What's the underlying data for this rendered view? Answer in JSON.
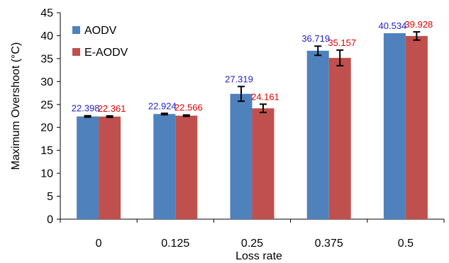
{
  "chart_data": {
    "type": "bar",
    "title": "",
    "xlabel": "Loss rate",
    "ylabel": "Maximum Overshoot (°C)",
    "categories": [
      "0",
      "0.125",
      "0.25",
      "0.375",
      "0.5"
    ],
    "ylim": [
      0,
      45
    ],
    "yticks": [
      0,
      5,
      10,
      15,
      20,
      25,
      30,
      35,
      40,
      45
    ],
    "grid": false,
    "legend_position": "top-left",
    "series": [
      {
        "name": "AODV",
        "color": "#4F81BD",
        "label_color": "#1F1FCC",
        "values": [
          22.398,
          22.924,
          27.319,
          36.719,
          40.534
        ],
        "labels": [
          "22.398",
          "22.924",
          "27.319",
          "36.719",
          "40.534"
        ],
        "error": [
          0.15,
          0.15,
          1.6,
          1.0,
          0
        ]
      },
      {
        "name": "E-AODV",
        "color": "#C0504D",
        "label_color": "#E00000",
        "values": [
          22.361,
          22.566,
          24.161,
          35.157,
          39.928
        ],
        "labels": [
          "22.361",
          "22.566",
          "24.161",
          "35.157",
          "39.928"
        ],
        "error": [
          0.15,
          0.15,
          0.9,
          1.7,
          0.9
        ]
      }
    ]
  }
}
